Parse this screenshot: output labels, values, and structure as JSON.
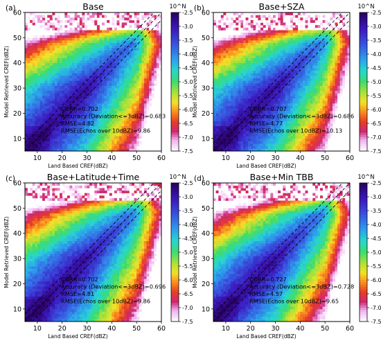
{
  "figure": {
    "colorbar": {
      "title": "10^N",
      "ticks": [
        -2.5,
        -3.0,
        -3.5,
        -4.0,
        -4.5,
        -5.0,
        -5.5,
        -6.0,
        -6.5,
        -7.0,
        -7.5
      ],
      "tick_labels": [
        "-2.5",
        "-3.0",
        "-3.5",
        "-4.0",
        "-4.5",
        "-5.0",
        "-5.5",
        "-6.0",
        "-6.5",
        "-7.0",
        "-7.5"
      ],
      "range": [
        -7.5,
        -2.5
      ],
      "colormap": "jet-like (purple high, white low)"
    }
  },
  "chart_data": [
    {
      "type": "heatmap",
      "panel_label": "(a)",
      "title": "Base",
      "xlabel": "Land Based CREF(dBZ)",
      "ylabel": "Model Retrieved CREF(dBZ)",
      "xlim": [
        5,
        60
      ],
      "ylim": [
        5,
        60
      ],
      "xticks": [
        10,
        20,
        30,
        40,
        50,
        60
      ],
      "yticks": [
        10,
        20,
        30,
        40,
        50,
        60
      ],
      "x_tick_labels": [
        "10",
        "20",
        "30",
        "40",
        "50",
        "60"
      ],
      "y_tick_labels": [
        "10",
        "20",
        "30",
        "40",
        "50",
        "60"
      ],
      "stats": {
        "corr": "CORR=0.702",
        "accuracy": "Accuracy (Deviation<=3dBZ)=0.683",
        "rmse": "RMSE=4.82",
        "rmse_echo": "RMSE(Echos over 10dBZ)=9.86"
      },
      "reference_lines": [
        "y=x",
        "y=x+3",
        "y=x-3"
      ],
      "spread": 1.0
    },
    {
      "type": "heatmap",
      "panel_label": "(b)",
      "title": "Base+SZA",
      "xlabel": "Land Based CREF(dBZ)",
      "ylabel": "Model Retrieved CREF(dBZ)",
      "xlim": [
        5,
        60
      ],
      "ylim": [
        5,
        60
      ],
      "xticks": [
        10,
        20,
        30,
        40,
        50,
        60
      ],
      "yticks": [
        10,
        20,
        30,
        40,
        50,
        60
      ],
      "x_tick_labels": [
        "10",
        "20",
        "30",
        "40",
        "50",
        "60"
      ],
      "y_tick_labels": [
        "10",
        "20",
        "30",
        "40",
        "50",
        "60"
      ],
      "stats": {
        "corr": "CORR=0.707",
        "accuracy": "Accuracy (Deviation<=3dBZ)=0.686",
        "rmse": "RMSE=4.77",
        "rmse_echo": "RMSE(Echos over 10dBZ)=10.13"
      },
      "reference_lines": [
        "y=x",
        "y=x+3",
        "y=x-3"
      ],
      "spread": 1.0
    },
    {
      "type": "heatmap",
      "panel_label": "(c)",
      "title": "Base+Latitude+Time",
      "xlabel": "Land Based CREF(dBZ)",
      "ylabel": "Model Retrieved CREF(dBZ)",
      "xlim": [
        5,
        60
      ],
      "ylim": [
        5,
        60
      ],
      "xticks": [
        10,
        20,
        30,
        40,
        50,
        60
      ],
      "yticks": [
        10,
        20,
        30,
        40,
        50,
        60
      ],
      "x_tick_labels": [
        "10",
        "20",
        "30",
        "40",
        "50",
        "60"
      ],
      "y_tick_labels": [
        "10",
        "20",
        "30",
        "40",
        "50",
        "60"
      ],
      "stats": {
        "corr": "CORR=0.702",
        "accuracy": "Accuracy (Deviation<=3dBZ)=0.696",
        "rmse": "RMSE=4.81",
        "rmse_echo": "RMSE(Echos over 10dBZ)=9.86"
      },
      "reference_lines": [
        "y=x",
        "y=x+3",
        "y=x-3"
      ],
      "spread": 1.0
    },
    {
      "type": "heatmap",
      "panel_label": "(d)",
      "title": "Base+Min TBB",
      "xlabel": "Land Based CREF(dBZ)",
      "ylabel": "Model Retrieved CREF(dBZ)",
      "xlim": [
        5,
        60
      ],
      "ylim": [
        5,
        60
      ],
      "xticks": [
        10,
        20,
        30,
        40,
        50,
        60
      ],
      "yticks": [
        10,
        20,
        30,
        40,
        50,
        60
      ],
      "x_tick_labels": [
        "10",
        "20",
        "30",
        "40",
        "50",
        "60"
      ],
      "y_tick_labels": [
        "10",
        "20",
        "30",
        "40",
        "50",
        "60"
      ],
      "stats": {
        "corr": "CORR=0.727",
        "accuracy": "Accuracy (Deviation<=3dBZ)=0.728",
        "rmse": "RMSE=4.57",
        "rmse_echo": "RMSE(Echos over 10dBZ)=9.65"
      },
      "reference_lines": [
        "y=x",
        "y=x+3",
        "y=x-3"
      ],
      "spread": 0.94
    }
  ]
}
